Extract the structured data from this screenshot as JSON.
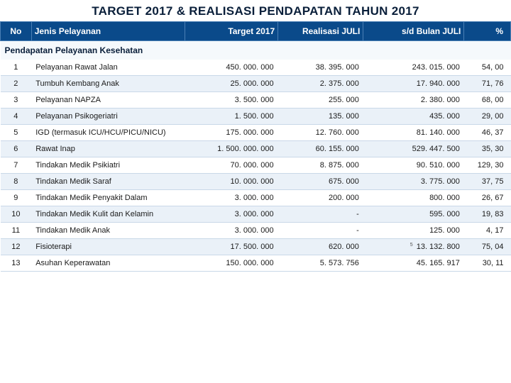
{
  "title": "TARGET 2017 & REALISASI PENDAPATAN TAHUN 2017",
  "columns": {
    "no": "No",
    "jenis": "Jenis Pelayanan",
    "target": "Target 2017",
    "realisasi": "Realisasi JULI",
    "sd": "s/d Bulan JULI",
    "pct": "%"
  },
  "section_label": "Pendapatan Pelayanan Kesehatan",
  "rows": [
    {
      "no": "1",
      "jenis": "Pelayanan Rawat Jalan",
      "target": "450. 000. 000",
      "real": "38. 395. 000",
      "sd": "243. 015. 000",
      "pct": "54, 00"
    },
    {
      "no": "2",
      "jenis": "Tumbuh Kembang Anak",
      "target": "25. 000. 000",
      "real": "2. 375. 000",
      "sd": "17. 940. 000",
      "pct": "71, 76"
    },
    {
      "no": "3",
      "jenis": "Pelayanan NAPZA",
      "target": "3. 500. 000",
      "real": "255. 000",
      "sd": "2. 380. 000",
      "pct": "68, 00"
    },
    {
      "no": "4",
      "jenis": "Pelayanan Psikogeriatri",
      "target": "1. 500. 000",
      "real": "135. 000",
      "sd": "435. 000",
      "pct": "29, 00"
    },
    {
      "no": "5",
      "jenis": "IGD (termasuk ICU/HCU/PICU/NICU)",
      "target": "175. 000. 000",
      "real": "12. 760. 000",
      "sd": "81. 140. 000",
      "pct": "46, 37"
    },
    {
      "no": "6",
      "jenis": "Rawat Inap",
      "target": "1. 500. 000. 000",
      "real": "60. 155. 000",
      "sd": "529. 447. 500",
      "pct": "35, 30"
    },
    {
      "no": "7",
      "jenis": "Tindakan Medik Psikiatri",
      "target": "70. 000. 000",
      "real": "8. 875. 000",
      "sd": "90. 510. 000",
      "pct": "129, 30"
    },
    {
      "no": "8",
      "jenis": "Tindakan Medik Saraf",
      "target": "10. 000. 000",
      "real": "675. 000",
      "sd": "3. 775. 000",
      "pct": "37, 75"
    },
    {
      "no": "9",
      "jenis": "Tindakan Medik Penyakit Dalam",
      "target": "3. 000. 000",
      "real": "200. 000",
      "sd": "800. 000",
      "pct": "26, 67"
    },
    {
      "no": "10",
      "jenis": "Tindakan Medik Kulit dan Kelamin",
      "target": "3. 000. 000",
      "real": "-",
      "sd": "595. 000",
      "pct": "19, 83"
    },
    {
      "no": "11",
      "jenis": "Tindakan Medik Anak",
      "target": "3. 000. 000",
      "real": "-",
      "sd": "125. 000",
      "pct": "4, 17"
    },
    {
      "no": "12",
      "jenis": "Fisioterapi",
      "target": "17. 500. 000",
      "real": "620. 000",
      "sd": "13. 132. 800",
      "pct": "75, 04",
      "sd_note": "5"
    },
    {
      "no": "13",
      "jenis": "Asuhan Keperawatan",
      "target": "150. 000. 000",
      "real": "5. 573. 756",
      "sd": "45. 165. 917",
      "pct": "30, 11"
    }
  ],
  "colors": {
    "header_bg": "#0a4a8a",
    "header_text": "#ffffff",
    "row_even": "#eaf1f8",
    "row_odd": "#ffffff",
    "border": "#c9d8e8",
    "title_color": "#0a1f3a"
  }
}
